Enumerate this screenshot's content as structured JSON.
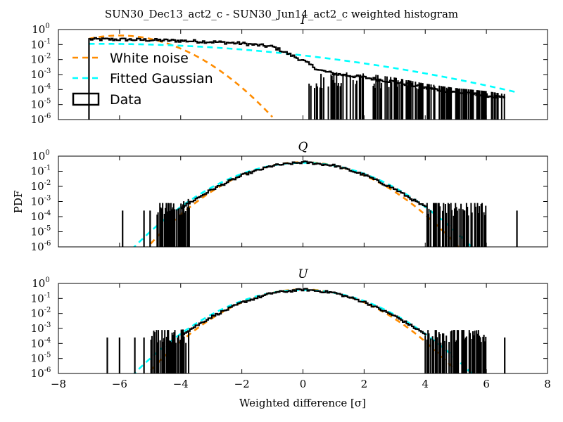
{
  "figure": {
    "suptitle": "SUN30_Dec13_act2_c - SUN30_Jun14_act2_c weighted histogram",
    "xlabel": "Weighted difference [σ]",
    "ylabel": "PDF"
  },
  "legend": {
    "location": "upper-left of first panel",
    "items": [
      {
        "label": "White noise",
        "style": "dashed",
        "color": "#ff8c00"
      },
      {
        "label": "Fitted Gaussian",
        "style": "dashed",
        "color": "#00ffff"
      },
      {
        "label": "Data",
        "style": "step",
        "color": "#000000"
      }
    ]
  },
  "chart_data": [
    {
      "type": "line",
      "title": "I",
      "xlim": [
        -8,
        8
      ],
      "ylim_log10": [
        -6,
        0
      ],
      "yscale": "log",
      "xticks": [
        -8,
        -6,
        -4,
        -2,
        0,
        2,
        4,
        6,
        8
      ],
      "yticks_exp": [
        0,
        -1,
        -2,
        -3,
        -4,
        -5,
        -6
      ],
      "series": [
        {
          "name": "White noise",
          "color": "#ff8c00",
          "dash": true,
          "gauss": {
            "mu": -6.0,
            "sigma": 1.0,
            "amp": 0.399
          },
          "xrange": [
            -7.0,
            -1.0
          ]
        },
        {
          "name": "Fitted Gaussian",
          "color": "#00ffff",
          "dash": true,
          "gauss": {
            "mu": -6.7,
            "sigma": 3.55,
            "amp": 0.112
          },
          "xrange": [
            -7.0,
            7.0
          ]
        },
        {
          "name": "Data",
          "color": "#000000",
          "kind": "hist",
          "points": [
            [
              -7.0,
              -0.65
            ],
            [
              -6.0,
              -0.66
            ],
            [
              -5.0,
              -0.7
            ],
            [
              -4.0,
              -0.75
            ],
            [
              -3.0,
              -0.82
            ],
            [
              -2.0,
              -0.93
            ],
            [
              -1.0,
              -1.15
            ],
            [
              0.0,
              -2.1
            ],
            [
              0.5,
              -2.7
            ],
            [
              1.0,
              -2.95
            ],
            [
              2.0,
              -3.2
            ],
            [
              3.0,
              -3.5
            ],
            [
              4.0,
              -3.9
            ],
            [
              5.0,
              -4.2
            ],
            [
              6.0,
              -4.4
            ],
            [
              6.6,
              -4.6
            ]
          ],
          "sparse_range": [
            0.2,
            6.6
          ],
          "data_xmin": -7.0,
          "noise": 0.2
        }
      ]
    },
    {
      "type": "line",
      "title": "Q",
      "xlim": [
        -8,
        8
      ],
      "ylim_log10": [
        -6,
        0
      ],
      "yscale": "log",
      "xticks": [
        -8,
        -6,
        -4,
        -2,
        0,
        2,
        4,
        6,
        8
      ],
      "yticks_exp": [
        0,
        -1,
        -2,
        -3,
        -4,
        -5,
        -6
      ],
      "series": [
        {
          "name": "White noise",
          "color": "#ff8c00",
          "dash": true,
          "gauss": {
            "mu": 0.0,
            "sigma": 1.0,
            "amp": 0.399
          },
          "xrange": [
            -5.2,
            5.2
          ]
        },
        {
          "name": "Fitted Gaussian",
          "color": "#00ffff",
          "dash": true,
          "gauss": {
            "mu": 0.0,
            "sigma": 1.09,
            "amp": 0.366
          },
          "xrange": [
            -5.6,
            5.6
          ]
        },
        {
          "name": "Data",
          "color": "#000000",
          "kind": "hist",
          "points": [
            [
              -4.0,
              -3.4
            ],
            [
              -3.0,
              -2.2
            ],
            [
              -2.0,
              -1.25
            ],
            [
              -1.0,
              -0.62
            ],
            [
              0.0,
              -0.4
            ],
            [
              1.0,
              -0.62
            ],
            [
              2.0,
              -1.25
            ],
            [
              3.0,
              -2.2
            ],
            [
              4.0,
              -3.4
            ]
          ],
          "sparse_left": [
            -4.8,
            -3.7
          ],
          "sparse_right": [
            4.0,
            6.0
          ],
          "outliers": [
            -5.9,
            -5.2,
            -5.0,
            7.0
          ],
          "noise": 0.15
        }
      ]
    },
    {
      "type": "line",
      "title": "U",
      "xlim": [
        -8,
        8
      ],
      "ylim_log10": [
        -6,
        0
      ],
      "yscale": "log",
      "xticks": [
        -8,
        -6,
        -4,
        -2,
        0,
        2,
        4,
        6,
        8
      ],
      "yticks_exp": [
        0,
        -1,
        -2,
        -3,
        -4,
        -5,
        -6
      ],
      "series": [
        {
          "name": "White noise",
          "color": "#ff8c00",
          "dash": true,
          "gauss": {
            "mu": 0.0,
            "sigma": 1.0,
            "amp": 0.399
          },
          "xrange": [
            -5.2,
            5.2
          ]
        },
        {
          "name": "Fitted Gaussian",
          "color": "#00ffff",
          "dash": true,
          "gauss": {
            "mu": 0.0,
            "sigma": 1.09,
            "amp": 0.366
          },
          "xrange": [
            -5.6,
            5.7
          ]
        },
        {
          "name": "Data",
          "color": "#000000",
          "kind": "hist",
          "points": [
            [
              -4.0,
              -3.4
            ],
            [
              -3.0,
              -2.2
            ],
            [
              -2.0,
              -1.25
            ],
            [
              -1.0,
              -0.62
            ],
            [
              0.0,
              -0.4
            ],
            [
              1.0,
              -0.62
            ],
            [
              2.0,
              -1.25
            ],
            [
              3.0,
              -2.2
            ],
            [
              4.0,
              -3.4
            ]
          ],
          "sparse_left": [
            -5.0,
            -3.7
          ],
          "sparse_right": [
            4.0,
            6.0
          ],
          "outliers": [
            -6.4,
            -6.0,
            -5.5,
            -5.2,
            6.6
          ],
          "noise": 0.15
        }
      ]
    }
  ]
}
